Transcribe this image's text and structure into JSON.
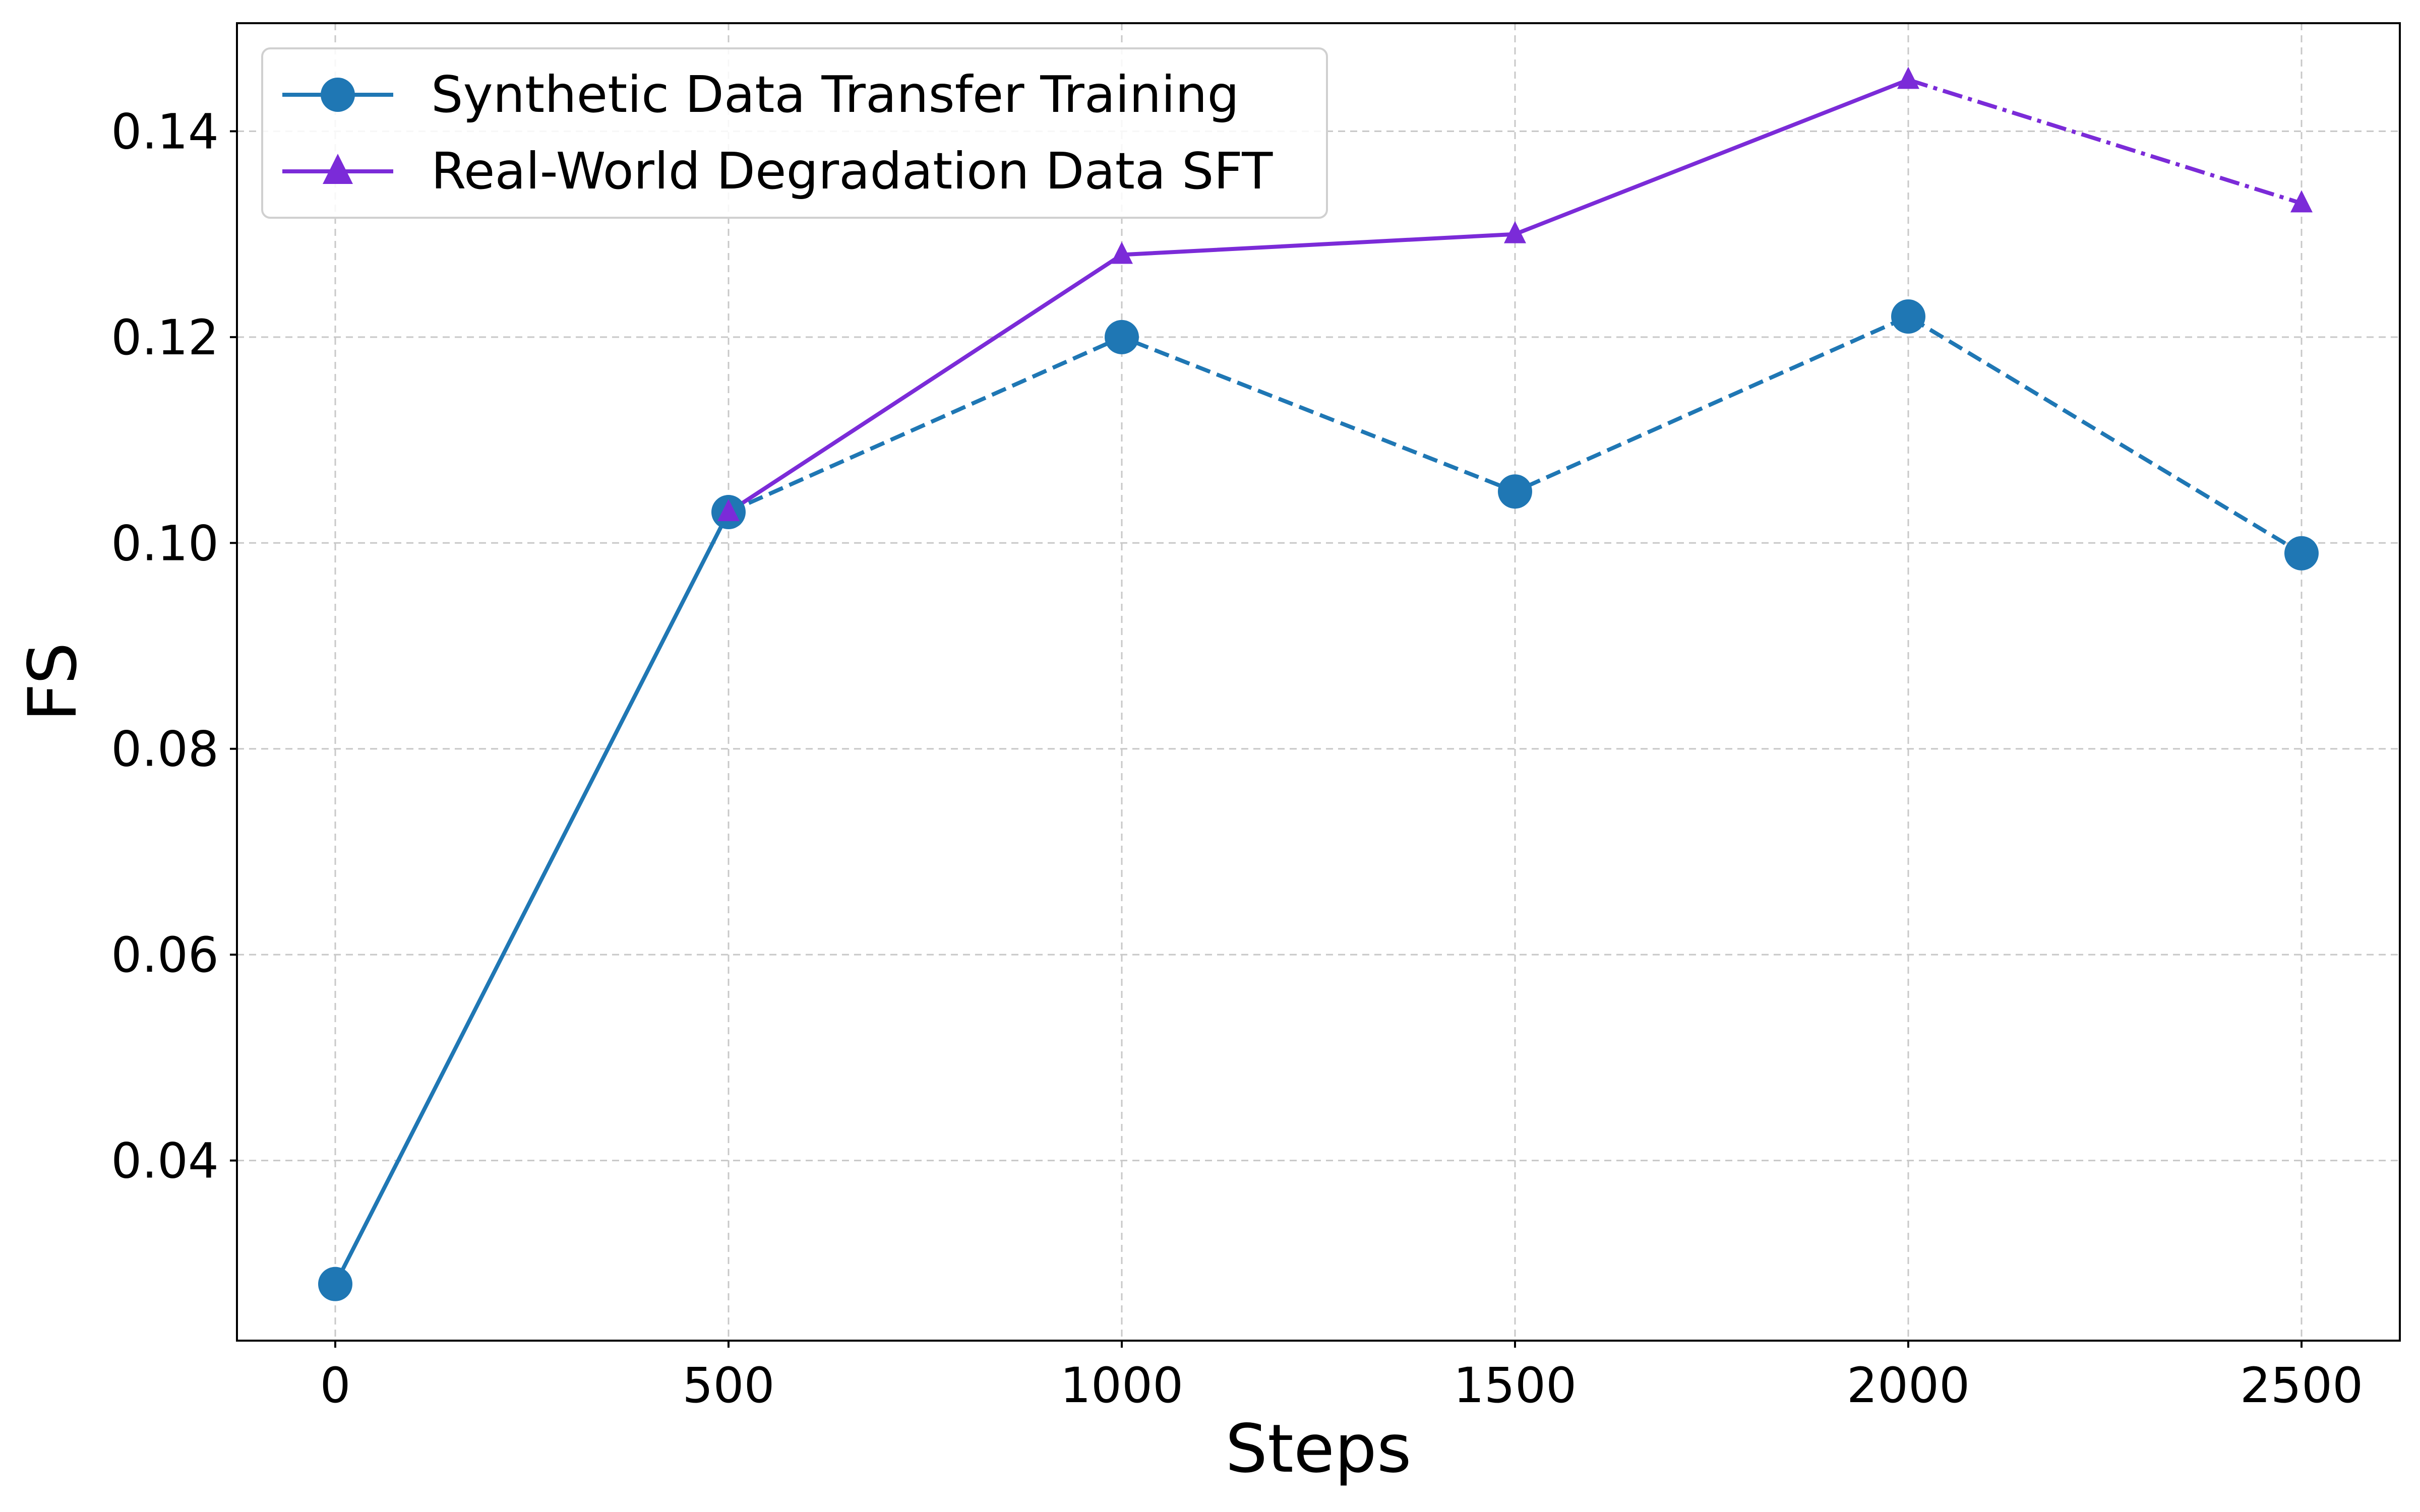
{
  "chart_data": {
    "type": "line",
    "title": "",
    "xlabel": "Steps",
    "ylabel": "FS",
    "x": [
      0,
      500,
      1000,
      1500,
      2000,
      2500
    ],
    "xticks": [
      "0",
      "500",
      "1000",
      "1500",
      "2000",
      "2500"
    ],
    "yticks": [
      "0.04",
      "0.06",
      "0.08",
      "0.10",
      "0.12",
      "0.14"
    ],
    "xlim": [
      -125,
      2625
    ],
    "ylim": [
      0.0225,
      0.1505
    ],
    "grid": true,
    "legend_position": "upper left",
    "series": [
      {
        "name": "Synthetic Data Transfer Training",
        "x": [
          0,
          500,
          1000,
          1500,
          2000,
          2500
        ],
        "values": [
          0.028,
          0.103,
          0.12,
          0.105,
          0.122,
          0.099
        ],
        "color": "#1f77b4",
        "marker": "circle",
        "line_style": "solid 0-500, dashed after"
      },
      {
        "name": "Real-World Degradation Data SFT",
        "x": [
          500,
          1000,
          1500,
          2000,
          2500
        ],
        "values": [
          0.103,
          0.128,
          0.13,
          0.145,
          0.133
        ],
        "color": "#7b2bd8",
        "marker": "triangle",
        "line_style": "solid 500-2000, dash-dot after"
      }
    ]
  }
}
